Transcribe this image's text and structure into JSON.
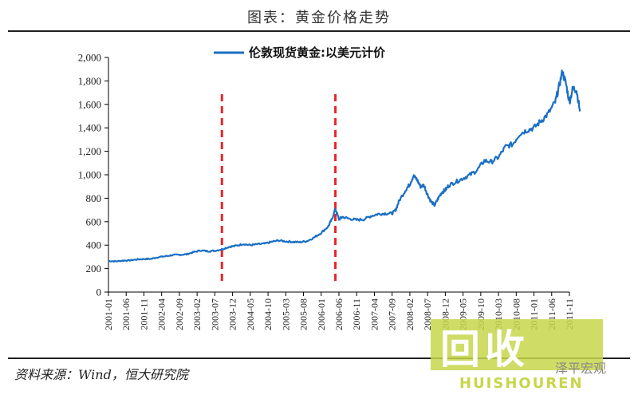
{
  "header": {
    "title": "图表：黄金价格走势"
  },
  "chart_data": {
    "type": "line",
    "legend": "伦敦现货黄金:以美元计价",
    "legend_position": "top-center",
    "ylim": [
      0,
      2000
    ],
    "yticks": [
      0,
      200,
      400,
      600,
      800,
      1000,
      1200,
      1400,
      1600,
      1800,
      2000
    ],
    "ytick_labels": [
      "0",
      "200",
      "400",
      "600",
      "800",
      "1,000",
      "1,200",
      "1,400",
      "1,600",
      "1,800",
      "2,000"
    ],
    "xlim_months": [
      0,
      130
    ],
    "xtick_labels": [
      "2001-01",
      "2001-06",
      "2001-11",
      "2002-04",
      "2002-09",
      "2003-02",
      "2003-07",
      "2003-12",
      "2004-05",
      "2004-10",
      "2005-03",
      "2005-08",
      "2006-01",
      "2006-06",
      "2006-11",
      "2007-04",
      "2007-09",
      "2008-02",
      "2008-07",
      "2008-12",
      "2009-05",
      "2009-10",
      "2010-03",
      "2010-08",
      "2011-01",
      "2011-06",
      "2011-11"
    ],
    "xtick_months": [
      0,
      5,
      10,
      15,
      20,
      25,
      30,
      35,
      40,
      45,
      50,
      55,
      60,
      65,
      70,
      75,
      80,
      85,
      90,
      95,
      100,
      105,
      110,
      115,
      120,
      125,
      130
    ],
    "markers": [
      {
        "month": 32,
        "color": "#e8262a",
        "style": "dashed"
      },
      {
        "month": 64,
        "color": "#e8262a",
        "style": "dashed"
      }
    ],
    "series": [
      {
        "name": "伦敦现货黄金:以美元计价",
        "color": "#1a6fc4",
        "points": [
          [
            0,
            265
          ],
          [
            2,
            262
          ],
          [
            4,
            268
          ],
          [
            6,
            270
          ],
          [
            8,
            278
          ],
          [
            10,
            282
          ],
          [
            12,
            283
          ],
          [
            14,
            298
          ],
          [
            16,
            305
          ],
          [
            18,
            315
          ],
          [
            20,
            318
          ],
          [
            22,
            322
          ],
          [
            24,
            340
          ],
          [
            26,
            355
          ],
          [
            28,
            348
          ],
          [
            30,
            352
          ],
          [
            32,
            365
          ],
          [
            34,
            385
          ],
          [
            36,
            395
          ],
          [
            38,
            410
          ],
          [
            40,
            400
          ],
          [
            42,
            408
          ],
          [
            44,
            412
          ],
          [
            46,
            428
          ],
          [
            48,
            440
          ],
          [
            50,
            432
          ],
          [
            52,
            428
          ],
          [
            54,
            425
          ],
          [
            56,
            435
          ],
          [
            58,
            465
          ],
          [
            60,
            505
          ],
          [
            62,
            560
          ],
          [
            63,
            620
          ],
          [
            64,
            710
          ],
          [
            65,
            620
          ],
          [
            66,
            640
          ],
          [
            68,
            625
          ],
          [
            70,
            615
          ],
          [
            72,
            620
          ],
          [
            74,
            648
          ],
          [
            76,
            665
          ],
          [
            78,
            670
          ],
          [
            80,
            670
          ],
          [
            81,
            700
          ],
          [
            82,
            780
          ],
          [
            84,
            880
          ],
          [
            85,
            920
          ],
          [
            86,
            990
          ],
          [
            87,
            960
          ],
          [
            88,
            900
          ],
          [
            89,
            910
          ],
          [
            90,
            830
          ],
          [
            91,
            770
          ],
          [
            92,
            740
          ],
          [
            93,
            800
          ],
          [
            94,
            850
          ],
          [
            95,
            870
          ],
          [
            96,
            910
          ],
          [
            98,
            940
          ],
          [
            100,
            970
          ],
          [
            102,
            1000
          ],
          [
            104,
            1040
          ],
          [
            106,
            1120
          ],
          [
            108,
            1110
          ],
          [
            110,
            1150
          ],
          [
            112,
            1240
          ],
          [
            114,
            1260
          ],
          [
            116,
            1350
          ],
          [
            118,
            1380
          ],
          [
            120,
            1400
          ],
          [
            122,
            1460
          ],
          [
            124,
            1520
          ],
          [
            126,
            1620
          ],
          [
            127,
            1740
          ],
          [
            128,
            1880
          ],
          [
            129,
            1780
          ],
          [
            130,
            1620
          ],
          [
            131,
            1740
          ],
          [
            132,
            1720
          ],
          [
            133,
            1540
          ]
        ]
      }
    ]
  },
  "source": {
    "text": "资料来源：Wind，恒大研究院"
  },
  "watermark": {
    "big": "回收",
    "sub": "HUISHOUREN",
    "brand": "泽平宏观"
  }
}
